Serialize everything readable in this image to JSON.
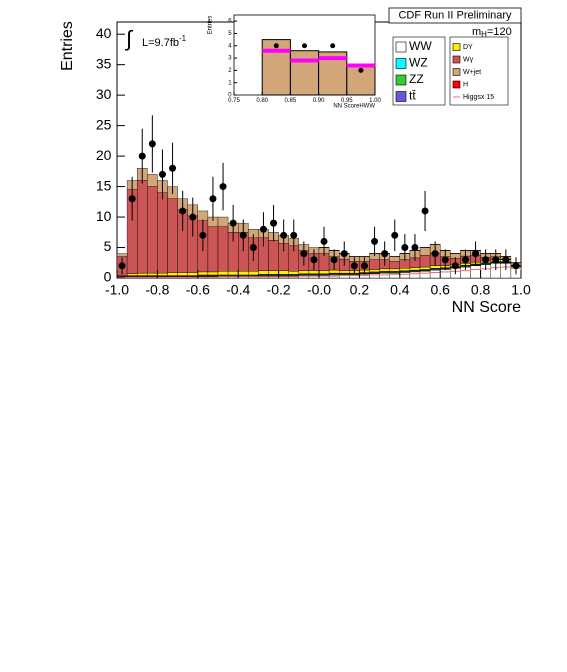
{
  "chart_data": {
    "type": "histogram",
    "ylabel": "Entries",
    "xlabel": "NN Score",
    "title": "CDF Run II Preliminary",
    "mass_label": {
      "main": "m",
      "sub": "H",
      "rest": "=120"
    },
    "lumi_label": {
      "integral": "∫",
      "main": "L=9.7fb",
      "sup": "-1"
    },
    "bins": [
      -1.0,
      -0.95,
      -0.9,
      -0.85,
      -0.8,
      -0.75,
      -0.7,
      -0.65,
      -0.6,
      -0.55,
      -0.5,
      -0.45,
      -0.4,
      -0.35,
      -0.3,
      -0.25,
      -0.2,
      -0.15,
      -0.1,
      -0.05,
      0.0,
      0.05,
      0.1,
      0.15,
      0.2,
      0.25,
      0.3,
      0.35,
      0.4,
      0.45,
      0.5,
      0.55,
      0.6,
      0.65,
      0.7,
      0.75,
      0.8,
      0.85,
      0.9,
      0.95,
      1.0
    ],
    "xlim": [
      -1.0,
      1.0
    ],
    "ylim": [
      0,
      42
    ],
    "xticks": [
      {
        "value": -1.0,
        "label": "-1.0"
      },
      -0.8,
      -0.6,
      -0.4,
      -0.2,
      {
        "value": 0,
        "label": "-0.0"
      },
      0.2,
      0.4,
      0.6,
      0.8,
      {
        "value": 1.0,
        "label": "1.0"
      }
    ],
    "yticks": [
      0,
      5,
      10,
      15,
      20,
      25,
      30,
      35,
      40
    ],
    "series": [
      {
        "name": "WW",
        "color": "#ffffff",
        "values": [
          0,
          0.1,
          0.1,
          0.1,
          0.1,
          0.1,
          0.1,
          0.1,
          0.2,
          0.2,
          0.2,
          0.2,
          0.2,
          0.2,
          0.3,
          0.3,
          0.3,
          0.3,
          0.4,
          0.4,
          0.4,
          0.5,
          0.5,
          0.5,
          0.6,
          0.7,
          0.8,
          0.8,
          0.9,
          1.0,
          1.1,
          1.3,
          1.4,
          1.6,
          1.8,
          2.0,
          2.2,
          2.4,
          2.4,
          1.8
        ]
      },
      {
        "name": "WZ",
        "color": "#00ffff",
        "values": [
          0.1,
          0.1,
          0.1,
          0.1,
          0.1,
          0.1,
          0.1,
          0.1,
          0.1,
          0.1,
          0.1,
          0.1,
          0.1,
          0.1,
          0.1,
          0.1,
          0.1,
          0.1,
          0.1,
          0.1,
          0.1,
          0.1,
          0.1,
          0.1,
          0.1,
          0.1,
          0.1,
          0.1,
          0.1,
          0.1,
          0.1,
          0.1,
          0.1,
          0.1,
          0.1,
          0.1,
          0.1,
          0.1,
          0.1,
          0.1
        ]
      },
      {
        "name": "ZZ",
        "color": "#33cc33",
        "values": [
          0.1,
          0.1,
          0.1,
          0.1,
          0.1,
          0.1,
          0.1,
          0.1,
          0.1,
          0.1,
          0.1,
          0.1,
          0.1,
          0.1,
          0.1,
          0.1,
          0.1,
          0.1,
          0.1,
          0.1,
          0.1,
          0.1,
          0.1,
          0.1,
          0.1,
          0.1,
          0.1,
          0.1,
          0.1,
          0.1,
          0.1,
          0.1,
          0.1,
          0.1,
          0.1,
          0.1,
          0.1,
          0.1,
          0.1,
          0.1
        ]
      },
      {
        "name": "tt̄",
        "color": "#6655dd",
        "values": [
          0.1,
          0.1,
          0.1,
          0.1,
          0.1,
          0.1,
          0.1,
          0.1,
          0.1,
          0.1,
          0.1,
          0.1,
          0.1,
          0.1,
          0.1,
          0.1,
          0.1,
          0.1,
          0.1,
          0.1,
          0.1,
          0.1,
          0.1,
          0.1,
          0.1,
          0.1,
          0.1,
          0.1,
          0.1,
          0.1,
          0.1,
          0.1,
          0.1,
          0.1,
          0.1,
          0.1,
          0.1,
          0.1,
          0.1,
          0.1
        ]
      },
      {
        "name": "DY",
        "color": "#ffee00",
        "values": [
          0.1,
          0.3,
          0.4,
          0.4,
          0.4,
          0.5,
          0.5,
          0.5,
          0.5,
          0.5,
          0.6,
          0.6,
          0.6,
          0.6,
          0.6,
          0.6,
          0.6,
          0.5,
          0.5,
          0.5,
          0.5,
          0.5,
          0.4,
          0.4,
          0.4,
          0.4,
          0.4,
          0.4,
          0.4,
          0.4,
          0.4,
          0.4,
          0.3,
          0.3,
          0.3,
          0.3,
          0.3,
          0.3,
          0.3,
          0.2
        ]
      },
      {
        "name": "Wγ",
        "color": "#cc5555",
        "values": [
          3.1,
          13.8,
          15.2,
          14.2,
          13.2,
          12.1,
          10.3,
          9.3,
          8.4,
          7.4,
          7.3,
          6.4,
          6.4,
          5.5,
          5.4,
          5.0,
          4.5,
          4.2,
          3.3,
          2.8,
          2.8,
          2.2,
          1.9,
          1.5,
          1.4,
          1.6,
          1.5,
          1.2,
          1.4,
          1.6,
          1.9,
          2.1,
          1.5,
          1.0,
          1.2,
          1.1,
          0.6,
          0.5,
          0.1,
          0
        ]
      },
      {
        "name": "W+jet",
        "color": "#d2a679",
        "values": [
          0.5,
          1.5,
          2,
          2,
          2,
          2,
          1.8,
          1.8,
          1.6,
          1.6,
          1.6,
          1.5,
          1.5,
          1.4,
          1.4,
          1.3,
          1.3,
          1.2,
          1.0,
          1.0,
          1.0,
          1.0,
          0.9,
          0.8,
          0.8,
          1.0,
          1.0,
          0.8,
          1.0,
          1.2,
          1.3,
          1.4,
          1.0,
          0.8,
          0.9,
          0.8,
          0.6,
          0.5,
          0.4,
          0.2
        ]
      },
      {
        "name": "H",
        "color": "#ff0000",
        "values": [
          0,
          0,
          0,
          0,
          0,
          0,
          0,
          0,
          0,
          0,
          0,
          0,
          0,
          0,
          0,
          0,
          0,
          0,
          0,
          0,
          0.05,
          0.05,
          0.05,
          0.05,
          0.05,
          0.05,
          0.05,
          0.05,
          0.05,
          0.05,
          0.05,
          0.05,
          0.05,
          0.05,
          0.05,
          0.05,
          0.05,
          0.05,
          0.05,
          0.05
        ]
      }
    ],
    "signal_line": {
      "name": "Higgsx 15",
      "color": "#ff6666",
      "values": [
        0.1,
        0.1,
        0.1,
        0.1,
        0.1,
        0.1,
        0.1,
        0.1,
        0.1,
        0.1,
        0.2,
        0.2,
        0.2,
        0.2,
        0.2,
        0.2,
        0.2,
        0.2,
        0.3,
        0.3,
        0.3,
        0.3,
        0.4,
        0.4,
        0.4,
        0.5,
        0.5,
        0.6,
        0.6,
        0.7,
        0.8,
        0.9,
        1.0,
        1.1,
        1.2,
        1.4,
        1.5,
        1.7,
        1.8,
        1.6
      ]
    },
    "data_points": {
      "values": [
        2,
        13,
        20,
        22,
        17,
        18,
        11,
        10,
        7,
        13,
        15,
        9,
        7,
        5,
        8,
        9,
        7,
        7,
        4,
        3,
        6,
        3,
        4,
        2,
        2,
        6,
        4,
        7,
        5,
        5,
        11,
        4,
        3,
        2,
        3,
        4,
        3,
        3,
        3,
        2
      ],
      "errors": [
        1.4,
        3.6,
        4.5,
        4.7,
        4.1,
        4.2,
        3.3,
        3.2,
        2.6,
        3.6,
        3.9,
        3,
        2.6,
        2.2,
        2.8,
        3,
        2.6,
        2.6,
        2,
        1.7,
        2.4,
        1.7,
        2,
        1.4,
        1.4,
        2.4,
        2,
        2.6,
        2.2,
        2.2,
        3.3,
        2,
        1.7,
        1.4,
        1.7,
        2,
        1.7,
        1.7,
        1.7,
        1.4
      ]
    },
    "inset": {
      "type": "histogram",
      "ylabel": "Entries",
      "xlabel": "NN ScoreHWW",
      "bins": [
        0.75,
        0.8,
        0.85,
        0.9,
        0.95,
        1.0
      ],
      "xlim": [
        0.75,
        1.0
      ],
      "ylim": [
        0,
        6.5
      ],
      "xticks": [
        0.75,
        {
          "value": 0.8,
          "label": "0.80"
        },
        0.85,
        {
          "value": 0.9,
          "label": "0.90"
        },
        0.95,
        {
          "value": 1.0,
          "label": "1.00"
        }
      ],
      "yticks": [
        0,
        1,
        2,
        3,
        4,
        5,
        6
      ],
      "background": {
        "color": "#d2a679",
        "values": [
          0,
          4.5,
          3.6,
          3.5,
          2.3
        ]
      },
      "signal": {
        "color": "#ff00ff",
        "values": [
          0,
          3.6,
          2.8,
          3.0,
          2.4
        ]
      },
      "data": {
        "values": [
          null,
          4,
          4,
          4,
          2
        ]
      }
    }
  }
}
